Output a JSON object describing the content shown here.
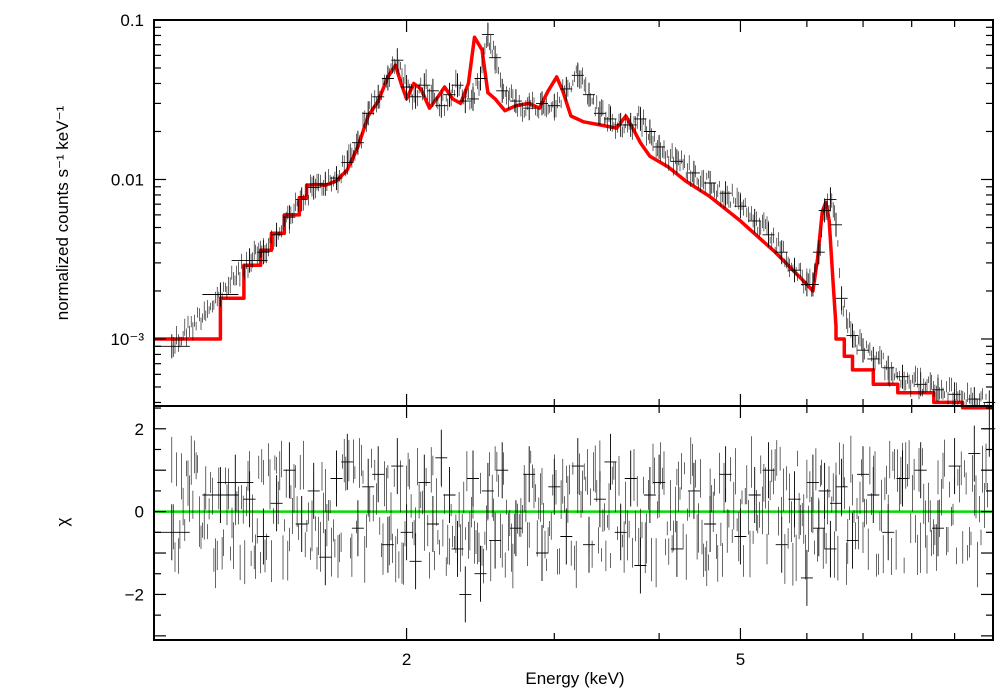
{
  "chart_data": [
    {
      "type": "line",
      "panel": "spectrum",
      "ylabel": "normalized counts s⁻¹ keV⁻¹",
      "xlabel": "",
      "xscale": "log",
      "yscale": "log",
      "xlim": [
        1.0,
        10.0
      ],
      "ylim": [
        0.00038,
        0.1
      ],
      "ytick_values": [
        0.001,
        0.01,
        0.1
      ],
      "ytick_labels": [
        "10⁻³",
        "0.01",
        "0.1"
      ],
      "xtick_values": [
        2,
        5
      ],
      "xtick_labels": [
        "",
        ""
      ],
      "series": [
        {
          "kind": "model",
          "color": "#ff0000",
          "x": [
            1.0,
            1.2,
            1.2,
            1.28,
            1.28,
            1.34,
            1.34,
            1.38,
            1.38,
            1.43,
            1.43,
            1.49,
            1.49,
            1.52,
            1.52,
            1.56,
            1.6,
            1.65,
            1.7,
            1.75,
            1.8,
            1.85,
            1.9,
            1.94,
            1.97,
            2.0,
            2.04,
            2.08,
            2.13,
            2.18,
            2.22,
            2.27,
            2.32,
            2.37,
            2.41,
            2.46,
            2.5,
            2.55,
            2.62,
            2.7,
            2.8,
            2.88,
            2.95,
            3.02,
            3.07,
            3.14,
            3.25,
            3.4,
            3.56,
            3.65,
            3.72,
            3.8,
            3.9,
            4.1,
            4.3,
            4.6,
            5.0,
            5.5,
            6.0,
            6.1,
            6.18,
            6.26,
            6.32,
            6.38,
            6.45,
            6.5,
            6.5,
            6.65,
            6.65,
            6.8,
            6.8,
            7.2,
            7.2,
            7.7,
            7.7,
            8.5,
            8.5,
            9.2,
            9.2,
            10.0
          ],
          "y": [
            0.001,
            0.001,
            0.0018,
            0.0018,
            0.0029,
            0.0029,
            0.0036,
            0.0036,
            0.0046,
            0.0046,
            0.006,
            0.006,
            0.0077,
            0.0077,
            0.0092,
            0.0093,
            0.0092,
            0.0098,
            0.0115,
            0.016,
            0.025,
            0.031,
            0.044,
            0.052,
            0.04,
            0.032,
            0.04,
            0.037,
            0.028,
            0.033,
            0.038,
            0.032,
            0.03,
            0.04,
            0.078,
            0.065,
            0.035,
            0.032,
            0.027,
            0.029,
            0.03,
            0.028,
            0.036,
            0.044,
            0.036,
            0.025,
            0.023,
            0.022,
            0.021,
            0.025,
            0.021,
            0.017,
            0.014,
            0.012,
            0.0098,
            0.0078,
            0.0055,
            0.0035,
            0.0022,
            0.002,
            0.0032,
            0.0063,
            0.0072,
            0.0055,
            0.0022,
            0.0012,
            0.001,
            0.001,
            0.00078,
            0.00078,
            0.00064,
            0.00064,
            0.00052,
            0.00052,
            0.00046,
            0.00046,
            0.0004,
            0.0004,
            0.00037,
            0.00037
          ]
        },
        {
          "kind": "data",
          "color": "#000000",
          "x": [
            1.05,
            1.2,
            1.3,
            1.35,
            1.4,
            1.45,
            1.5,
            1.55,
            1.6,
            1.65,
            1.7,
            1.75,
            1.8,
            1.85,
            1.9,
            1.95,
            2.0,
            2.05,
            2.1,
            2.15,
            2.2,
            2.25,
            2.3,
            2.35,
            2.4,
            2.45,
            2.5,
            2.55,
            2.6,
            2.7,
            2.8,
            2.9,
            3.0,
            3.1,
            3.2,
            3.3,
            3.4,
            3.5,
            3.6,
            3.7,
            3.8,
            3.9,
            4.0,
            4.2,
            4.4,
            4.6,
            4.8,
            5.0,
            5.2,
            5.4,
            5.6,
            5.8,
            6.0,
            6.1,
            6.2,
            6.3,
            6.4,
            6.5,
            6.6,
            6.8,
            7.0,
            7.2,
            7.5,
            7.8,
            8.2,
            8.6,
            9.0,
            9.5,
            9.9
          ],
          "y": [
            0.0009,
            0.0019,
            0.0031,
            0.0035,
            0.0045,
            0.0058,
            0.0075,
            0.0089,
            0.0094,
            0.0102,
            0.0128,
            0.017,
            0.026,
            0.033,
            0.043,
            0.056,
            0.038,
            0.033,
            0.039,
            0.036,
            0.029,
            0.034,
            0.039,
            0.031,
            0.032,
            0.043,
            0.081,
            0.058,
            0.036,
            0.031,
            0.028,
            0.03,
            0.029,
            0.037,
            0.045,
            0.034,
            0.026,
            0.024,
            0.022,
            0.022,
            0.024,
            0.02,
            0.016,
            0.013,
            0.011,
            0.0095,
            0.0082,
            0.0068,
            0.0055,
            0.0045,
            0.0035,
            0.0027,
            0.0022,
            0.0022,
            0.0035,
            0.0064,
            0.0075,
            0.0052,
            0.0018,
            0.00105,
            0.00085,
            0.00075,
            0.00066,
            0.00058,
            0.00052,
            0.00048,
            0.00045,
            0.00042,
            0.0004
          ]
        }
      ]
    },
    {
      "type": "scatter",
      "panel": "residuals",
      "ylabel": "χ",
      "xlabel": "Energy (keV)",
      "xscale": "log",
      "yscale": "linear",
      "xlim": [
        1.0,
        10.0
      ],
      "ylim": [
        -3.1,
        2.55
      ],
      "ytick_values": [
        -2,
        0,
        2
      ],
      "ytick_labels": [
        "−2",
        "0",
        "2"
      ],
      "xtick_values": [
        2,
        5
      ],
      "xtick_labels": [
        "2",
        "5"
      ],
      "zero_line_color": "#00dd00",
      "series": [
        {
          "kind": "residuals",
          "color": "#000000",
          "x": [
            1.05,
            1.2,
            1.25,
            1.3,
            1.35,
            1.4,
            1.45,
            1.5,
            1.55,
            1.6,
            1.65,
            1.7,
            1.75,
            1.8,
            1.85,
            1.9,
            1.95,
            2.0,
            2.05,
            2.1,
            2.15,
            2.2,
            2.25,
            2.3,
            2.35,
            2.4,
            2.45,
            2.5,
            2.55,
            2.6,
            2.7,
            2.8,
            2.9,
            3.0,
            3.1,
            3.2,
            3.3,
            3.4,
            3.5,
            3.6,
            3.7,
            3.8,
            3.9,
            4.0,
            4.2,
            4.4,
            4.6,
            4.8,
            5.0,
            5.2,
            5.4,
            5.6,
            5.8,
            6.0,
            6.1,
            6.2,
            6.3,
            6.4,
            6.5,
            6.6,
            6.8,
            7.0,
            7.2,
            7.5,
            7.8,
            8.2,
            8.6,
            9.0,
            9.5,
            9.9
          ],
          "y": [
            -0.5,
            0.4,
            0.7,
            0.3,
            -0.6,
            0.2,
            1.0,
            -0.3,
            0.5,
            -1.1,
            0.8,
            1.2,
            -0.4,
            0.6,
            0.9,
            -0.8,
            1.1,
            -0.5,
            -1.2,
            0.7,
            -0.3,
            1.3,
            0.4,
            -0.9,
            -2.0,
            0.8,
            -1.5,
            0.5,
            -0.7,
            1.0,
            -0.4,
            0.9,
            -1.0,
            0.6,
            -0.6,
            1.1,
            -0.8,
            0.3,
            1.2,
            -0.5,
            0.8,
            -1.3,
            0.4,
            0.7,
            -0.9,
            0.5,
            -0.3,
            0.9,
            -0.6,
            0.4,
            1.0,
            -0.8,
            0.3,
            -1.6,
            0.7,
            -0.4,
            0.5,
            -0.9,
            0.2,
            0.6,
            -0.7,
            0.9,
            0.4,
            -0.5,
            0.8,
            1.0,
            -0.4,
            1.1,
            1.4,
            2.0
          ]
        }
      ]
    }
  ]
}
